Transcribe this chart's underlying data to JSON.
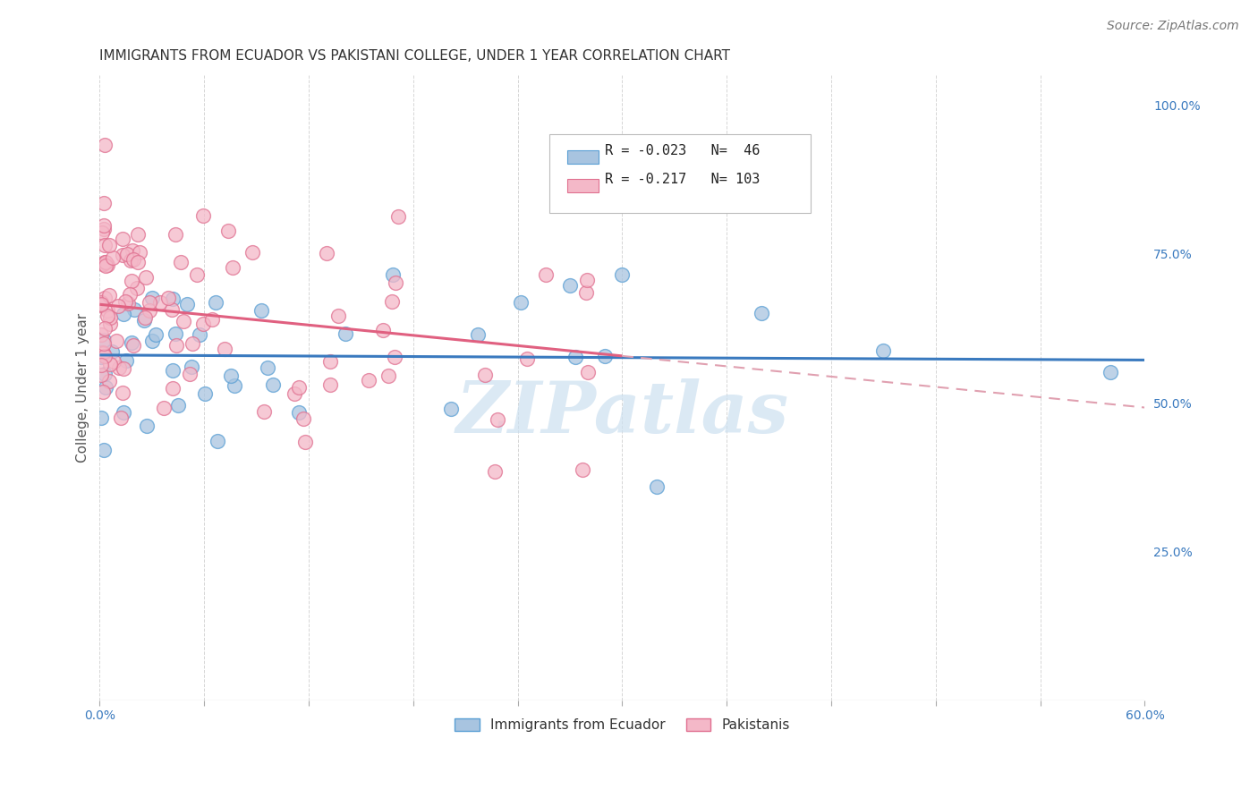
{
  "title": "IMMIGRANTS FROM ECUADOR VS PAKISTANI COLLEGE, UNDER 1 YEAR CORRELATION CHART",
  "source": "Source: ZipAtlas.com",
  "ylabel": "College, Under 1 year",
  "right_ytick_vals": [
    1.0,
    0.75,
    0.5,
    0.25
  ],
  "right_ytick_labels": [
    "100.0%",
    "75.0%",
    "50.0%",
    "25.0%"
  ],
  "legend_labels": [
    "Immigrants from Ecuador",
    "Pakistanis"
  ],
  "ecuador_color": "#a8c4e0",
  "ecuador_edge_color": "#5a9fd4",
  "pakistani_color": "#f4b8c8",
  "pakistani_edge_color": "#e07090",
  "ecuador_R": -0.023,
  "ecuador_N": 46,
  "pakistani_R": -0.217,
  "pakistani_N": 103,
  "ecuador_line_color": "#3a7abf",
  "pakistani_line_color": "#e06080",
  "pakistani_dash_color": "#e0a0b0",
  "watermark": "ZIPatlas",
  "watermark_color": "#cce0f0",
  "xlim": [
    0.0,
    0.6
  ],
  "ylim": [
    0.0,
    1.05
  ],
  "title_fontsize": 11,
  "tick_fontsize": 10,
  "legend_fontsize": 11,
  "source_fontsize": 10
}
